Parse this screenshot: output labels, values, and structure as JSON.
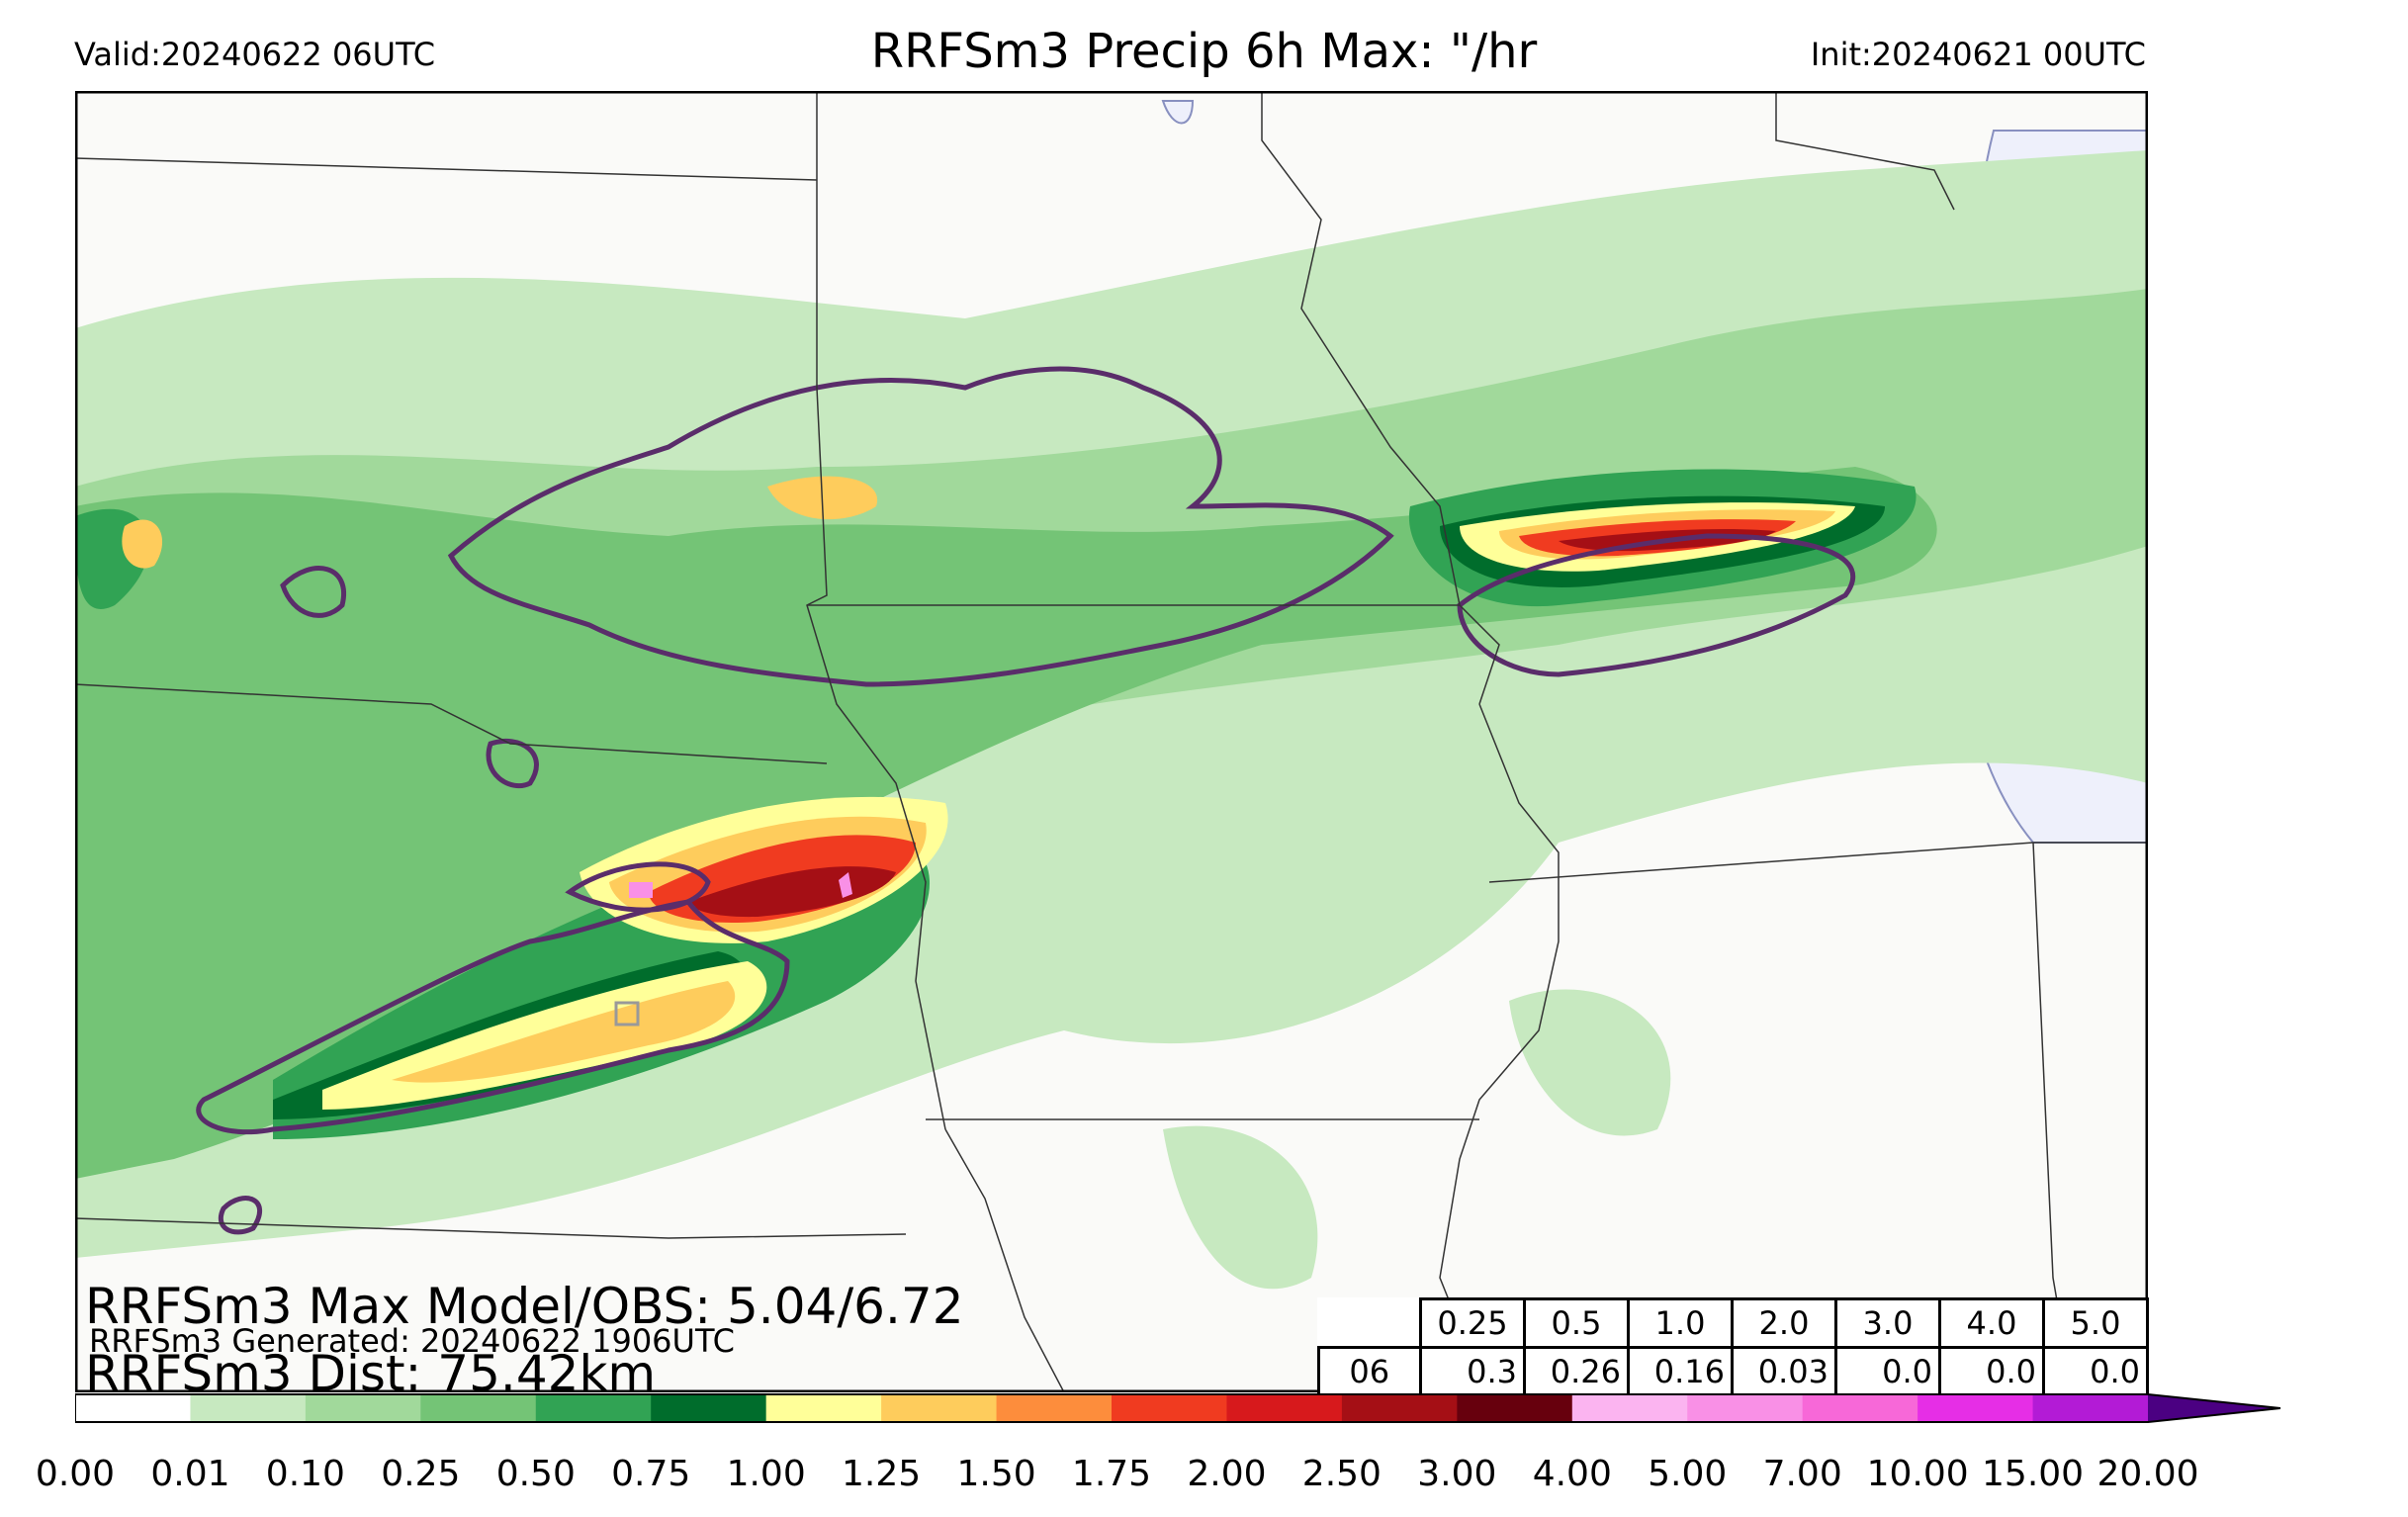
{
  "header": {
    "valid": "Valid:20240622 06UTC",
    "title": "RRFSm3 Precip 6h Max: \"/hr",
    "init": "Init:20240621 00UTC"
  },
  "stats": {
    "max_line": "RRFSm3 Max Model/OBS: 5.04/6.72",
    "generated_line": "RRFSm3 Generated: 20240622 1906UTC",
    "dist_line": "RRFSm3 Dist: 75.42km"
  },
  "table": {
    "thresholds": [
      "0.25",
      "0.5",
      "1.0",
      "2.0",
      "3.0",
      "4.0",
      "5.0"
    ],
    "hour": "06",
    "values": [
      "0.3",
      "0.26",
      "0.16",
      "0.03",
      "0.0",
      "0.0",
      "0.0"
    ]
  },
  "colorbar": {
    "ticks": [
      "0.00",
      "0.01",
      "0.10",
      "0.25",
      "0.50",
      "0.75",
      "1.00",
      "1.25",
      "1.50",
      "1.75",
      "2.00",
      "2.50",
      "3.00",
      "4.00",
      "5.00",
      "7.00",
      "10.00",
      "15.00",
      "20.00"
    ],
    "colors": [
      "#ffffff",
      "#c7e9c0",
      "#a1d99b",
      "#74c476",
      "#31a354",
      "#006d2c",
      "#ffff99",
      "#fecc5c",
      "#fd8d3c",
      "#f03b20",
      "#d7191c",
      "#a50f15",
      "#67000d",
      "#fbb4f0",
      "#f990e6",
      "#f768d8",
      "#e62ee6",
      "#b31bd6"
    ],
    "extend_color": "#4b0082"
  },
  "map_colors": {
    "land": "#fafaf8",
    "lake": "#eef0fb",
    "border": "#222222",
    "obs_contour": "#5a2d6a"
  }
}
